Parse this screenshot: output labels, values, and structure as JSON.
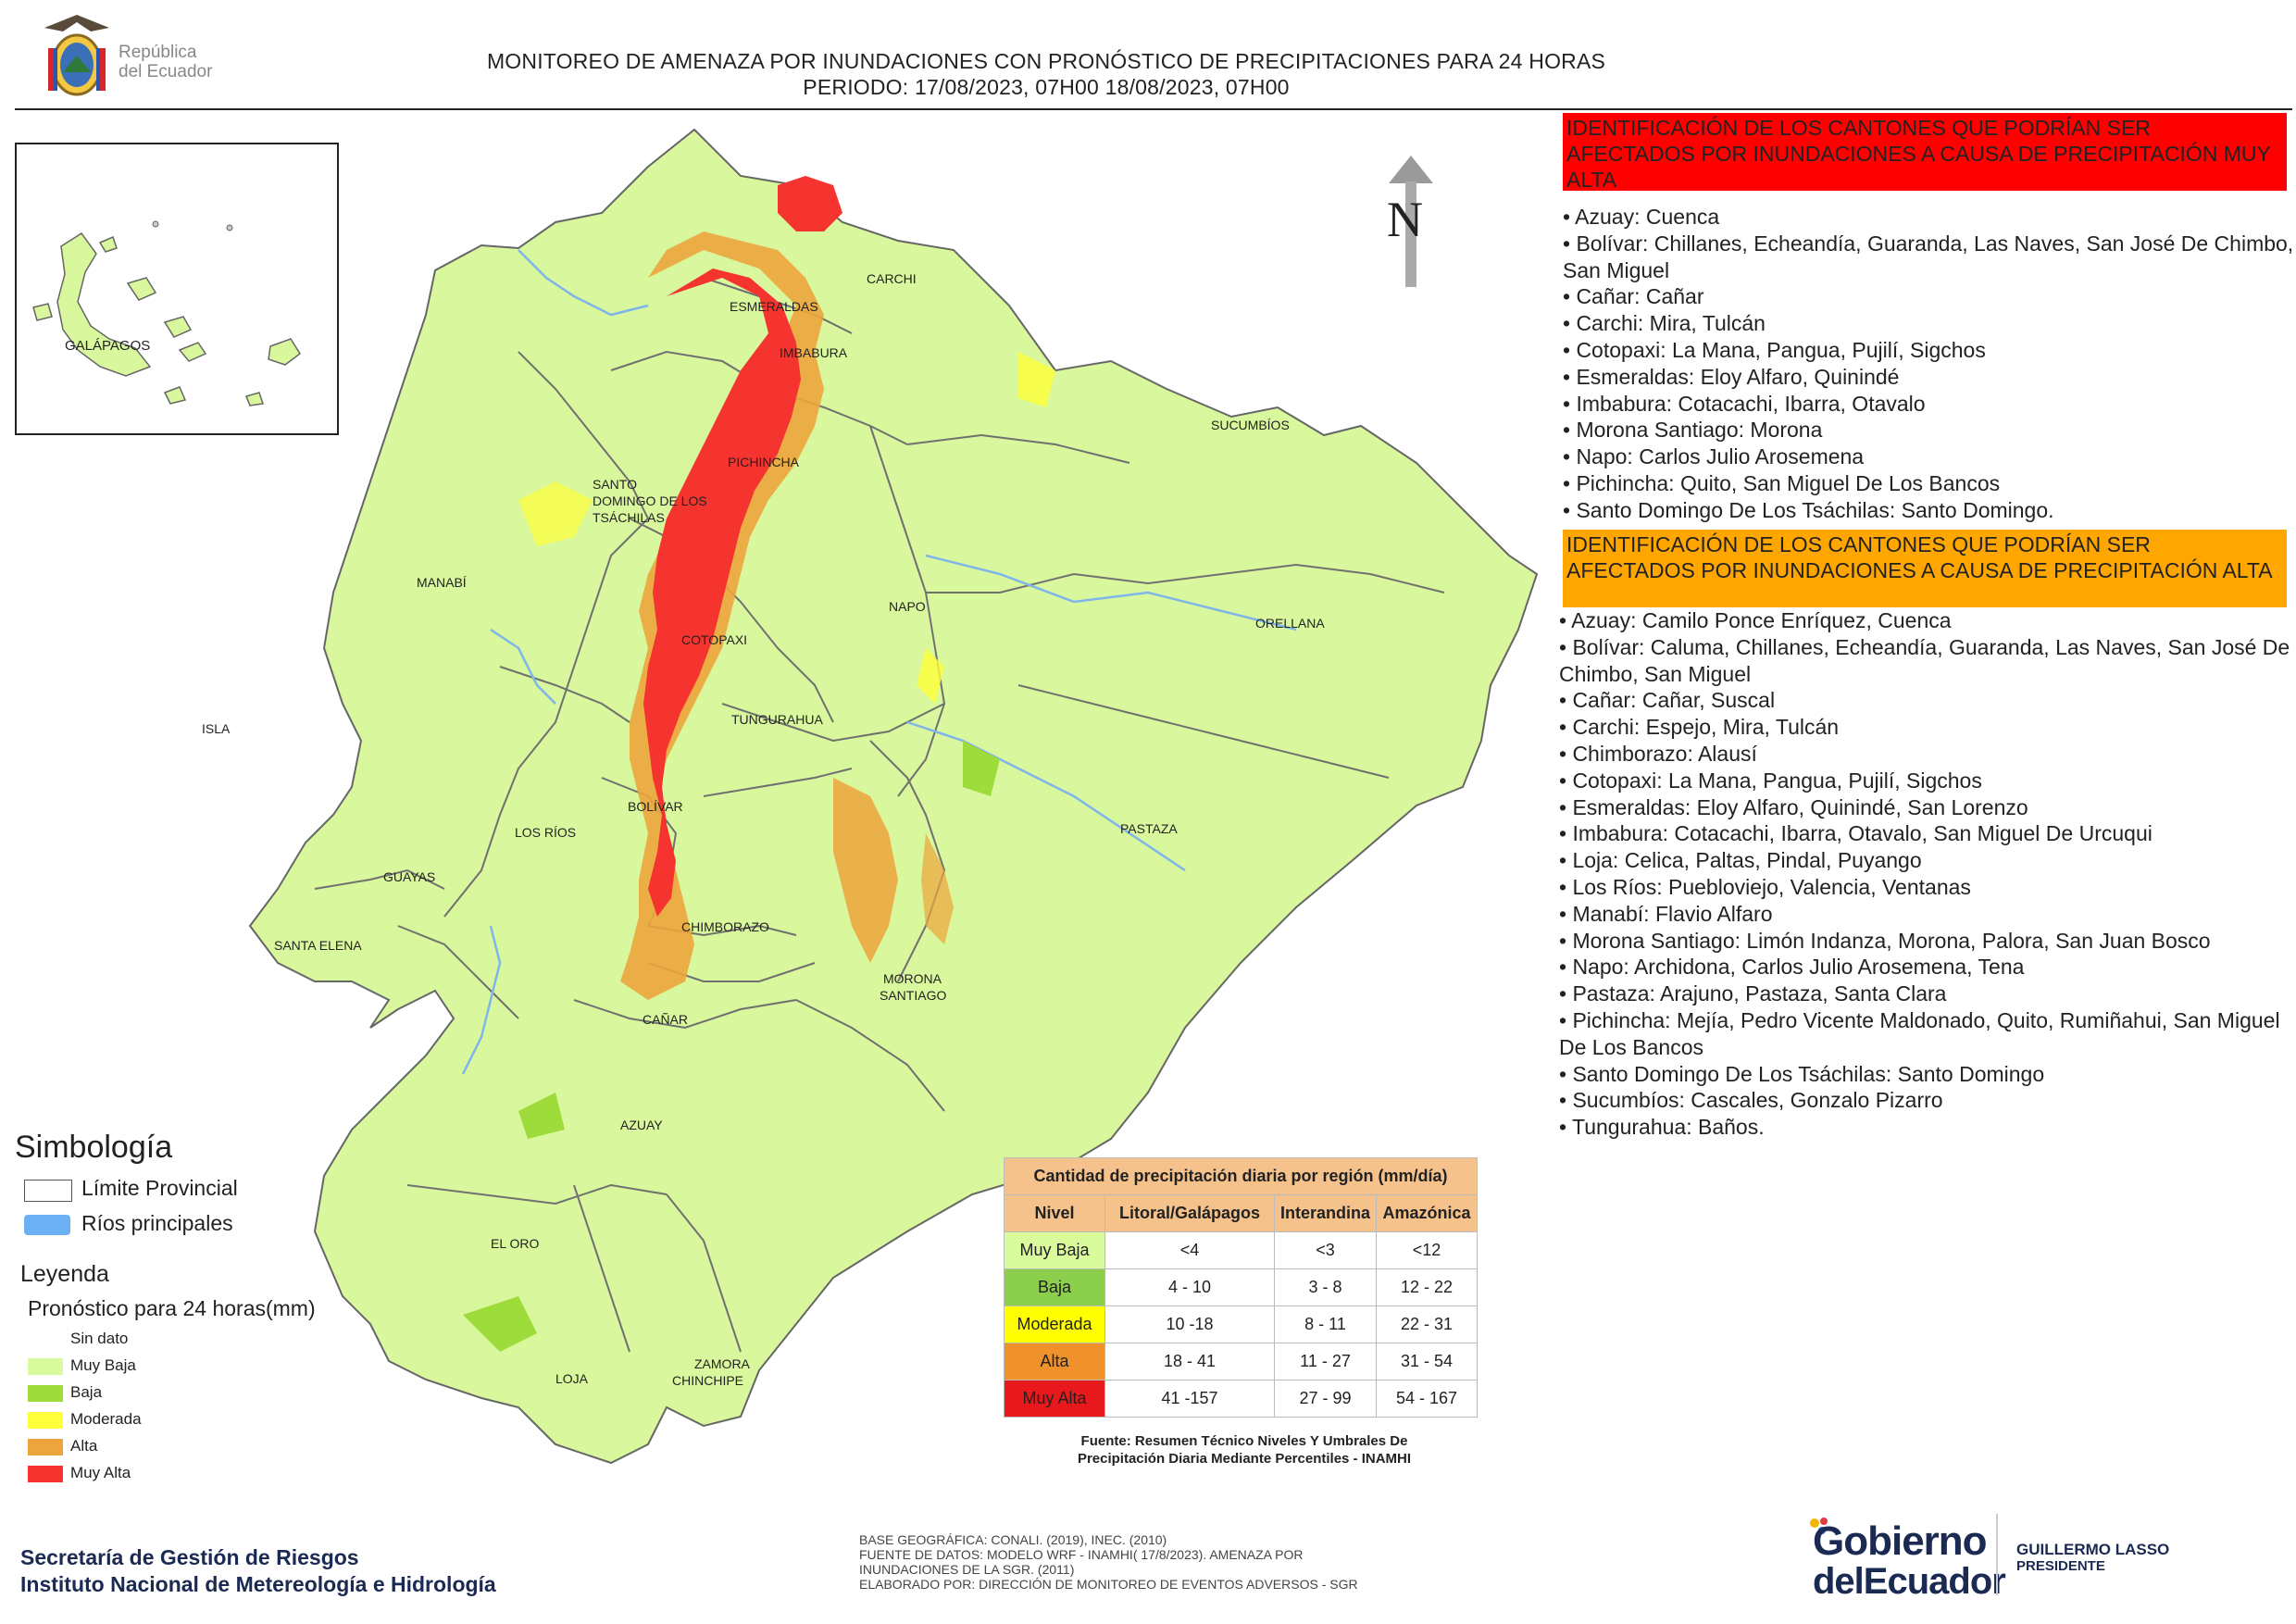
{
  "header": {
    "title_line1": "MONITOREO DE AMENAZA POR INUNDACIONES  CON PRONÓSTICO DE  PRECIPITACIONES PARA 24 HORAS",
    "title_line2": "PERIODO: 17/08/2023, 07H00 18/08/2023, 07H00",
    "logo_text_line1": "República",
    "logo_text_line2": "del Ecuador"
  },
  "map": {
    "north_label": "N",
    "inset_label": "GALÁPAGOS",
    "provinces": [
      "ESMERALDAS",
      "CARCHI",
      "IMBABURA",
      "SUCUMBÍOS",
      "PICHINCHA",
      "SANTO",
      "DOMINGO DE LOS",
      "TSÁCHILAS",
      "MANABÍ",
      "NAPO",
      "ORELLANA",
      "COTOPAXI",
      "ISLA",
      "TUNGURAHUA",
      "BOLÍVAR",
      "LOS RÍOS",
      "PASTAZA",
      "GUAYAS",
      "SANTA ELENA",
      "CHIMBORAZO",
      "MORONA",
      "SANTIAGO",
      "CAÑAR",
      "AZUAY",
      "EL ORO",
      "ZAMORA",
      "CHINCHIPE",
      "LOJA"
    ]
  },
  "panel_red": {
    "heading": "IDENTIFICACIÓN DE LOS CANTONES QUE PODRÍAN SER AFECTADOS POR INUNDACIONES  A CAUSA DE PRECIPITACIÓN MUY ALTA",
    "items": [
      "• Azuay: Cuenca",
      "• Bolívar: Chillanes, Echeandía, Guaranda, Las Naves, San José De Chimbo, San Miguel",
      "• Cañar: Cañar",
      "• Carchi: Mira, Tulcán",
      "• Cotopaxi: La Mana, Pangua, Pujilí, Sigchos",
      "• Esmeraldas: Eloy Alfaro, Quinindé",
      "• Imbabura: Cotacachi, Ibarra, Otavalo",
      "• Morona Santiago: Morona",
      "• Napo: Carlos Julio Arosemena",
      "• Pichincha: Quito, San Miguel De Los Bancos",
      "• Santo Domingo De Los Tsáchilas: Santo Domingo."
    ]
  },
  "panel_orange": {
    "heading": "IDENTIFICACIÓN DE LOS CANTONES QUE  PODRÍAN SER AFECTADOS POR INUNDACIONES  A CAUSA DE PRECIPITACIÓN ALTA",
    "items": [
      "• Azuay: Camilo Ponce Enríquez, Cuenca",
      "• Bolívar: Caluma, Chillanes, Echeandía, Guaranda, Las Naves, San José De Chimbo, San Miguel",
      "• Cañar: Cañar, Suscal",
      "• Carchi: Espejo, Mira, Tulcán",
      "• Chimborazo: Alausí",
      "• Cotopaxi: La Mana, Pangua, Pujilí, Sigchos",
      "• Esmeraldas: Eloy Alfaro, Quinindé, San Lorenzo",
      "• Imbabura: Cotacachi, Ibarra, Otavalo, San Miguel De Urcuqui",
      "• Loja: Celica, Paltas, Pindal, Puyango",
      "• Los Ríos: Puebloviejo, Valencia, Ventanas",
      "• Manabí: Flavio Alfaro",
      "• Morona Santiago: Limón Indanza, Morona, Palora, San Juan Bosco",
      "• Napo: Archidona, Carlos Julio Arosemena, Tena",
      "• Pastaza: Arajuno, Pastaza, Santa Clara",
      "• Pichincha: Mejía, Pedro Vicente Maldonado, Quito, Rumiñahui, San Miguel De Los Bancos",
      "• Santo Domingo De Los Tsáchilas: Santo Domingo",
      "• Sucumbíos: Cascales, Gonzalo Pizarro",
      "• Tungurahua: Baños."
    ]
  },
  "legend": {
    "simbologia_title": "Simbología",
    "limite_provincial": "Límite Provincial",
    "rios_principales": "Ríos principales",
    "leyenda_title": "Leyenda",
    "leyenda_subtitle": "Pronóstico para 24 horas(mm)",
    "items": [
      {
        "label": "Sin dato",
        "color": "#ffffff"
      },
      {
        "label": "Muy Baja",
        "color": "#d9fb9b"
      },
      {
        "label": "Baja",
        "color": "#9ddc3a"
      },
      {
        "label": "Moderada",
        "color": "#ffff3b"
      },
      {
        "label": "Alta",
        "color": "#eca43c"
      },
      {
        "label": "Muy Alta",
        "color": "#f5342f"
      }
    ]
  },
  "precip_table": {
    "title": "Cantidad de precipitación diaria por región (mm/día)",
    "headers": [
      "Nivel",
      "Litoral/Galápagos",
      "Interandina",
      "Amazónica"
    ],
    "rows": [
      {
        "nivel": "Muy Baja",
        "color": "#d9fb9b",
        "values": [
          "<4",
          "<3",
          "<12"
        ]
      },
      {
        "nivel": "Baja",
        "color": "#8ccf4d",
        "values": [
          "4 - 10",
          "3 - 8",
          "12 - 22"
        ]
      },
      {
        "nivel": "Moderada",
        "color": "#ffff00",
        "values": [
          "10 -18",
          "8 - 11",
          "22 - 31"
        ]
      },
      {
        "nivel": "Alta",
        "color": "#f0922b",
        "values": [
          "18 - 41",
          "11 - 27",
          "31 - 54"
        ]
      },
      {
        "nivel": "Muy Alta",
        "color": "#e8191c",
        "values": [
          "41 -157",
          "27 - 99",
          "54 - 167"
        ]
      }
    ],
    "source_line1": "Fuente: Resumen Técnico Niveles Y Umbrales De",
    "source_line2": "Precipitación Diaria Mediante Percentiles - INAMHI"
  },
  "footer": {
    "left_line1": "Secretaría de Gestión de Riesgos",
    "left_line2": "Instituto Nacional de Metereología e Hidrología",
    "mid_lines": [
      "BASE GEOGRÁFICA: CONALI. (2019), INEC. (2010)",
      "FUENTE DE DATOS: MODELO WRF - INAMHI( 17/8/2023).  AMENAZA POR",
      "INUNDACIONES DE LA SGR. (2011)",
      "ELABORADO POR: DIRECCIÓN DE MONITOREO DE EVENTOS ADVERSOS - SGR"
    ],
    "gob_line1": "Gobierno",
    "gob_line2": "delEcuador",
    "pres_line1": "GUILLERMO LASSO",
    "pres_line2": "PRESIDENTE"
  }
}
